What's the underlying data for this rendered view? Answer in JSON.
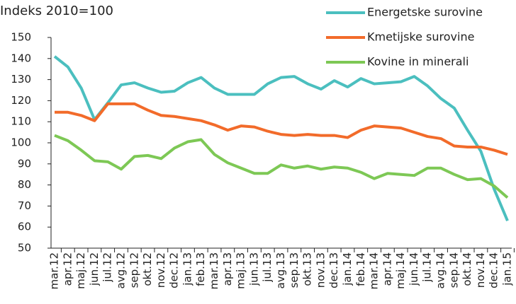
{
  "chart_data": {
    "type": "line",
    "title": "Indeks 2010=100",
    "categories": [
      "mar.12",
      "apr.12",
      "maj.12",
      "jun.12",
      "jul.12",
      "avg.12",
      "sep.12",
      "okt.12",
      "nov.12",
      "dec.12",
      "jan.13",
      "feb.13",
      "mar.13",
      "apr.13",
      "maj.13",
      "jun.13",
      "jul.13",
      "avg.13",
      "sep.13",
      "okt.13",
      "nov.13",
      "dec.13",
      "jan.14",
      "feb.14",
      "mar.14",
      "apr.14",
      "maj.14",
      "jun.14",
      "jul.14",
      "avg.14",
      "sep.14",
      "okt.14",
      "nov.14",
      "dec.14",
      "jan.15"
    ],
    "series": [
      {
        "name": "Energetske surovine",
        "color": "#4bbfbf",
        "values": [
          141,
          136,
          126,
          111,
          119,
          127.5,
          128.5,
          126,
          124,
          124.5,
          128.5,
          131,
          126,
          123,
          123,
          123,
          128,
          131,
          131.5,
          128,
          125.5,
          129.5,
          126.5,
          130.5,
          128,
          128.5,
          129,
          131.5,
          127,
          121,
          116.5,
          106,
          96,
          78,
          63
        ]
      },
      {
        "name": "Kmetijske surovine",
        "color": "#f26b2a",
        "values": [
          114.5,
          114.5,
          113,
          110.5,
          118.5,
          118.5,
          118.5,
          115.5,
          113,
          112.5,
          111.5,
          110.5,
          108.5,
          106,
          108,
          107.5,
          105.5,
          104,
          103.5,
          104,
          103.5,
          103.5,
          102.5,
          106,
          108,
          107.5,
          107,
          105,
          103,
          102,
          98.5,
          98,
          98,
          96.5,
          94.5
        ]
      },
      {
        "name": "Kovine in minerali",
        "color": "#7dc855",
        "values": [
          103.5,
          101,
          96.5,
          91.5,
          91,
          87.5,
          93.5,
          94,
          92.5,
          97.5,
          100.5,
          101.5,
          94.5,
          90.5,
          88,
          85.5,
          85.5,
          89.5,
          88,
          89,
          87.5,
          88.5,
          88,
          86,
          83,
          85.5,
          85,
          84.5,
          88,
          88,
          85,
          82.5,
          83,
          79.5,
          74
        ]
      }
    ],
    "ylim": [
      50,
      150
    ],
    "yticks": [
      50,
      60,
      70,
      80,
      90,
      100,
      110,
      120,
      130,
      140,
      150
    ],
    "legend": "top-right"
  }
}
